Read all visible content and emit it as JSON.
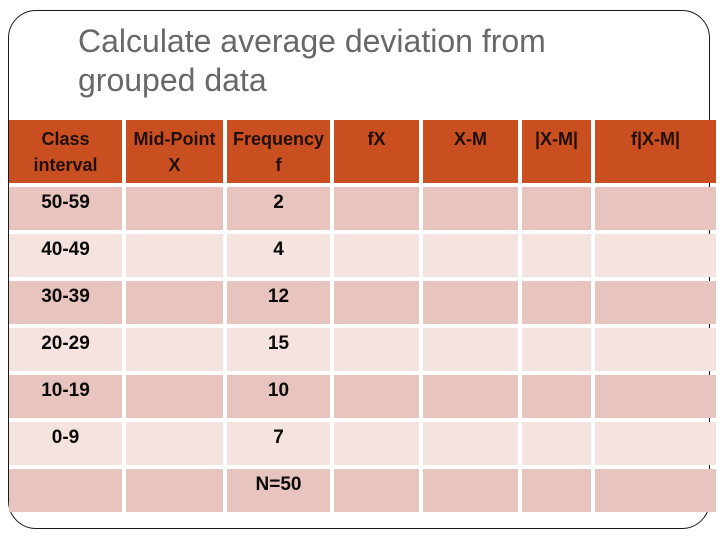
{
  "slide": {
    "title": "Calculate average deviation from grouped data"
  },
  "table": {
    "columns": [
      {
        "label": "Class interval"
      },
      {
        "label": "Mid-Point X"
      },
      {
        "label": "Frequency f"
      },
      {
        "label": "fX"
      },
      {
        "label": "X-M"
      },
      {
        "label": "|X-M|"
      },
      {
        "label": "f|X-M|"
      }
    ],
    "rows": [
      {
        "cells": [
          "50-59",
          "",
          "2",
          "",
          "",
          "",
          ""
        ]
      },
      {
        "cells": [
          "40-49",
          "",
          "4",
          "",
          "",
          "",
          ""
        ]
      },
      {
        "cells": [
          "30-39",
          "",
          "12",
          "",
          "",
          "",
          ""
        ]
      },
      {
        "cells": [
          "20-29",
          "",
          "15",
          "",
          "",
          "",
          ""
        ]
      },
      {
        "cells": [
          "10-19",
          "",
          "10",
          "",
          "",
          "",
          ""
        ]
      },
      {
        "cells": [
          "0-9",
          "",
          "7",
          "",
          "",
          "",
          ""
        ]
      },
      {
        "cells": [
          "",
          "",
          "N=50",
          "",
          "",
          "",
          ""
        ]
      }
    ],
    "total_label": "N=50"
  },
  "colors": {
    "background": "#ffffff",
    "frame_border": "#1a1a1a",
    "title_text": "#686868",
    "header_bg": "#C94F21",
    "header_text": "#21100a",
    "row_dark_bg": "#E7C4BD",
    "row_light_bg": "#F5E3E0",
    "cell_text": "#0a0a0a"
  }
}
